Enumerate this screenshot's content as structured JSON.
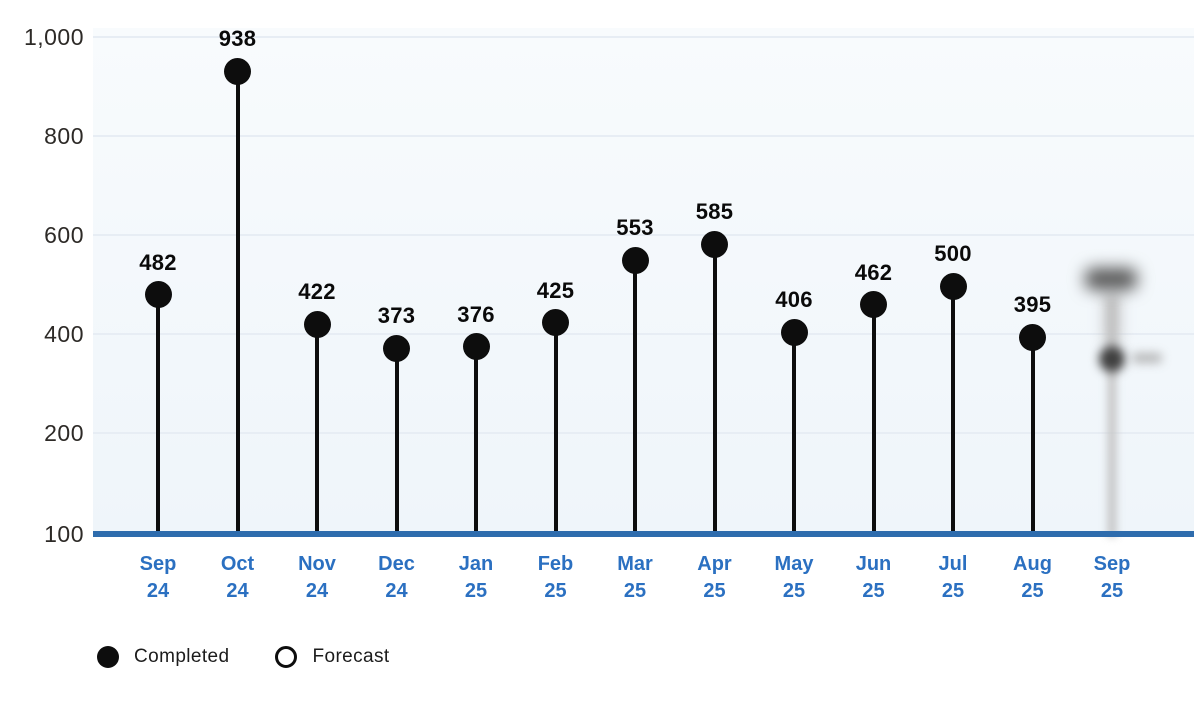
{
  "colors": {
    "baseline_blue": "#2e6cad",
    "axis_label_blue": "#2b70c1",
    "point_black": "#0d0d0d",
    "ytick_text": "#2d2a27",
    "gridline": "#e7edf4",
    "plot_background_tint": "#f3f7fa",
    "legend_text": "#1c1c1c"
  },
  "chart_data": {
    "type": "lollipop",
    "title": "",
    "xlabel": "",
    "ylabel": "",
    "categories": [
      "Sep 24",
      "Oct 24",
      "Nov 24",
      "Dec 24",
      "Jan 25",
      "Feb 25",
      "Mar 25",
      "Apr 25",
      "May 25",
      "Jun 25",
      "Jul 25",
      "Aug 25",
      "Sep 25"
    ],
    "points": [
      {
        "month": "Sep",
        "year": "24",
        "value": 482,
        "status": "completed"
      },
      {
        "month": "Oct",
        "year": "24",
        "value": 938,
        "status": "completed"
      },
      {
        "month": "Nov",
        "year": "24",
        "value": 422,
        "status": "completed"
      },
      {
        "month": "Dec",
        "year": "24",
        "value": 373,
        "status": "completed"
      },
      {
        "month": "Jan",
        "year": "25",
        "value": 376,
        "status": "completed"
      },
      {
        "month": "Feb",
        "year": "25",
        "value": 425,
        "status": "completed"
      },
      {
        "month": "Mar",
        "year": "25",
        "value": 553,
        "status": "completed"
      },
      {
        "month": "Apr",
        "year": "25",
        "value": 585,
        "status": "completed"
      },
      {
        "month": "May",
        "year": "25",
        "value": 406,
        "status": "completed"
      },
      {
        "month": "Jun",
        "year": "25",
        "value": 462,
        "status": "completed"
      },
      {
        "month": "Jul",
        "year": "25",
        "value": 500,
        "status": "completed"
      },
      {
        "month": "Aug",
        "year": "25",
        "value": 395,
        "status": "completed"
      },
      {
        "month": "Sep",
        "year": "25",
        "value": null,
        "status": "forecast",
        "blurred": true
      }
    ],
    "yticks": [
      "1,000",
      "800",
      "600",
      "400",
      "200",
      "100"
    ],
    "ylim": [
      100,
      1000
    ],
    "gridlines": true,
    "legend_position": "bottom-left",
    "legend": [
      {
        "label": "Completed",
        "marker": "filled-circle"
      },
      {
        "label": "Forecast",
        "marker": "outline-circle"
      }
    ]
  }
}
